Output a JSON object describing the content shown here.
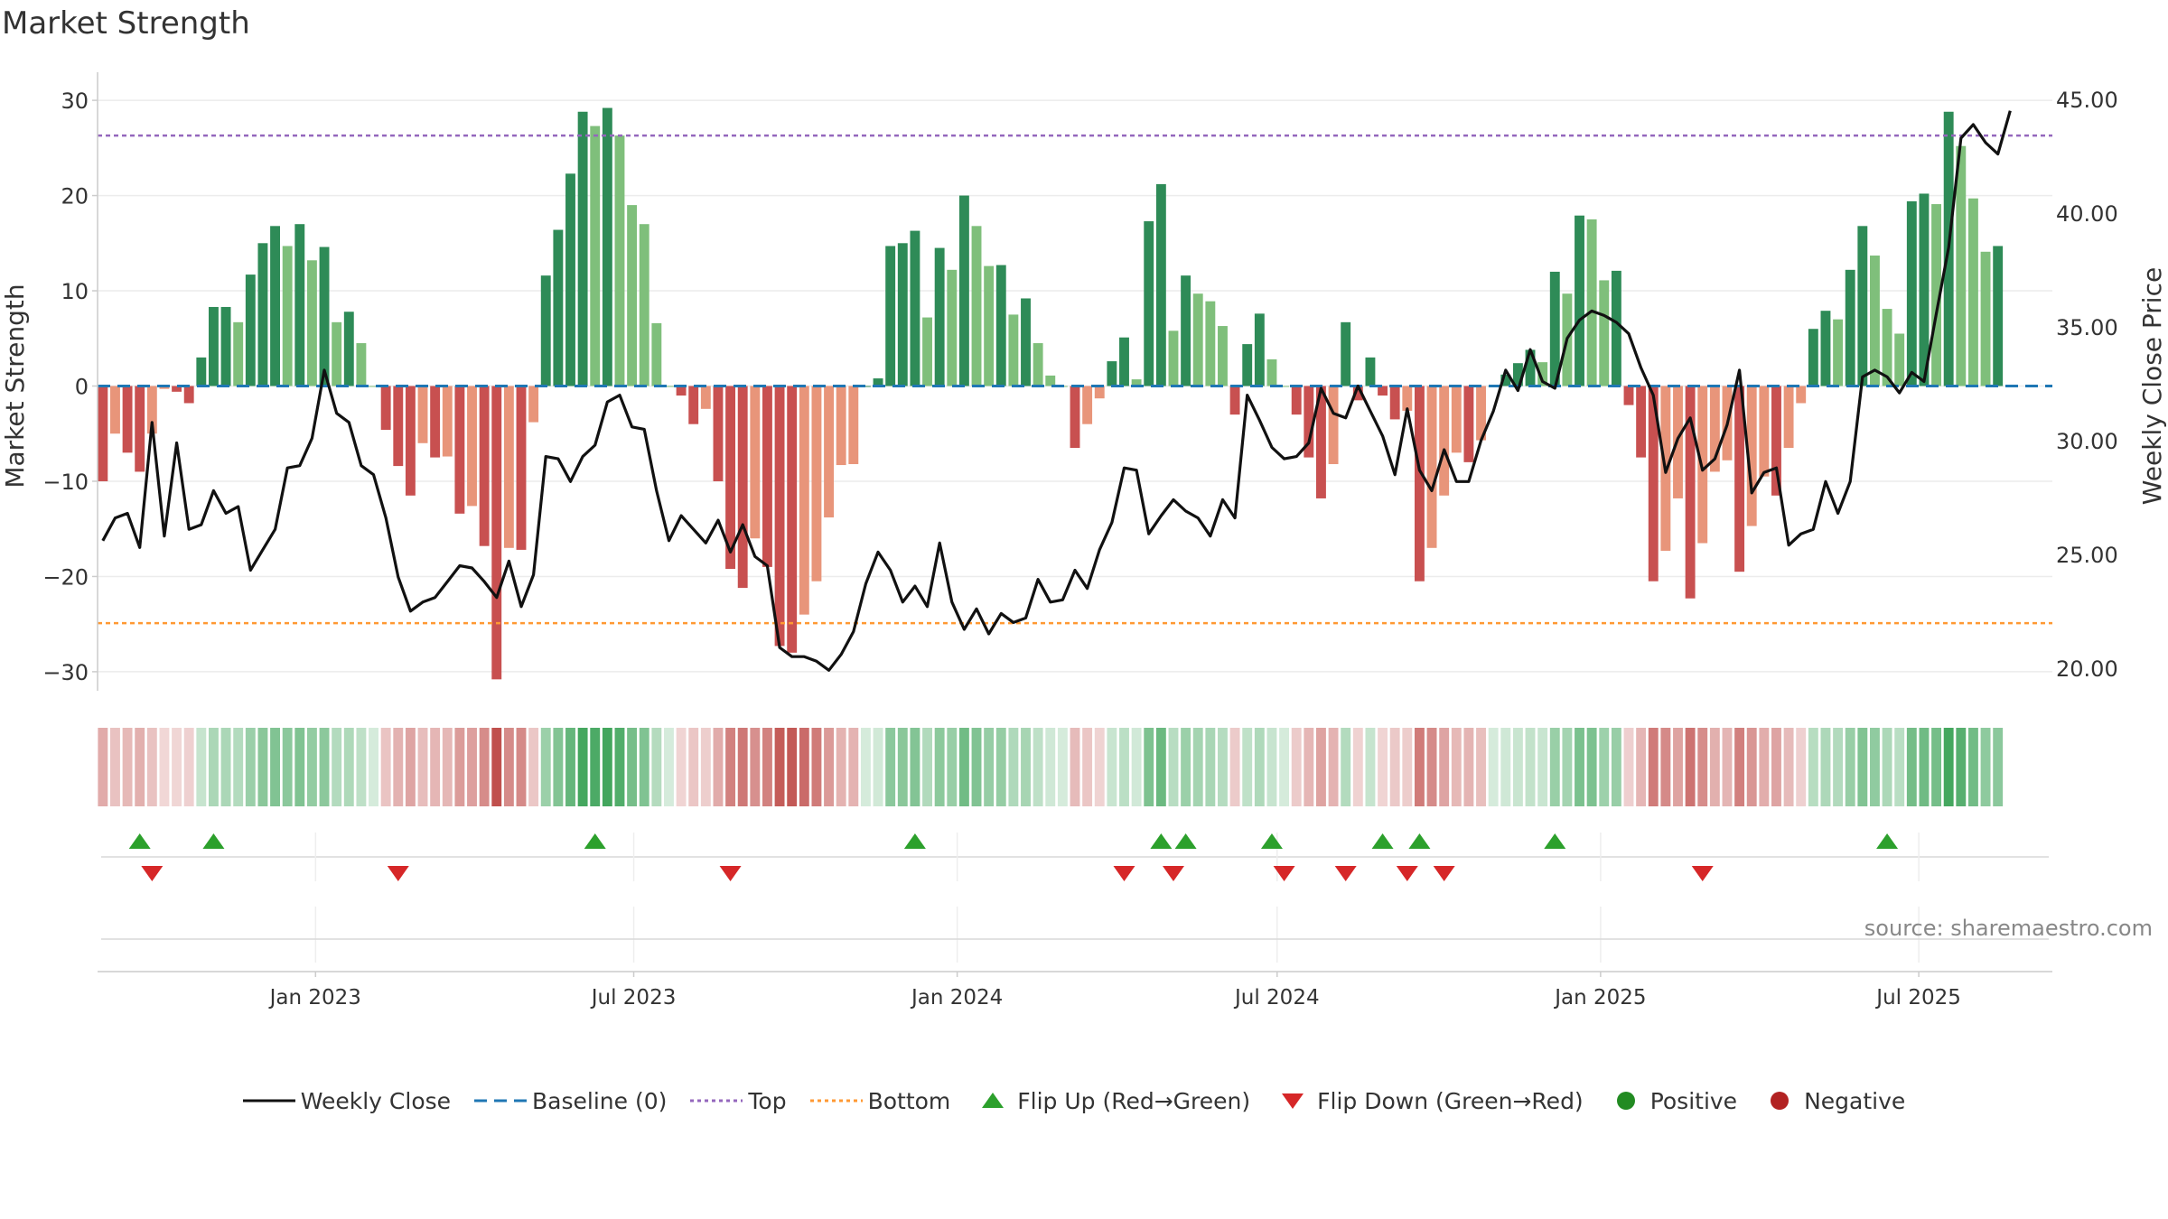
{
  "title": "Market Strength",
  "source": "source: sharemaestro.com",
  "legend": {
    "weekly_close": "Weekly Close",
    "baseline": "Baseline (0)",
    "top": "Top",
    "bottom": "Bottom",
    "flip_up": "Flip Up (Red→Green)",
    "flip_down": "Flip Down (Green→Red)",
    "positive": "Positive",
    "negative": "Negative"
  },
  "colors": {
    "strong_green": "#2e8b57",
    "light_green": "#7fbf7b",
    "strong_red": "#c85050",
    "light_red": "#e8957a",
    "top_line": "#9467bd",
    "bottom_line": "#ff9933",
    "baseline": "#1f77b4",
    "price": "#111111",
    "flip_up": "#2ca02c",
    "flip_down": "#d62728",
    "positive": "#228b22",
    "negative": "#b22222"
  },
  "chart_data": {
    "type": "bar",
    "x_dates": [
      "2022-09-02",
      "2022-09-09",
      "2022-09-16",
      "2022-09-23",
      "2022-09-30",
      "2022-10-07",
      "2022-10-14",
      "2022-10-21",
      "2022-10-28",
      "2022-11-04",
      "2022-11-11",
      "2022-11-18",
      "2022-11-25",
      "2022-12-02",
      "2022-12-09",
      "2022-12-16",
      "2022-12-23",
      "2022-12-30",
      "2023-01-06",
      "2023-01-13",
      "2023-01-20",
      "2023-01-27",
      "2023-02-03",
      "2023-02-10",
      "2023-02-17",
      "2023-02-24",
      "2023-03-03",
      "2023-03-10",
      "2023-03-17",
      "2023-03-24",
      "2023-03-31",
      "2023-04-07",
      "2023-04-14",
      "2023-04-21",
      "2023-04-28",
      "2023-05-05",
      "2023-05-12",
      "2023-05-19",
      "2023-05-26",
      "2023-06-02",
      "2023-06-09",
      "2023-06-16",
      "2023-06-23",
      "2023-06-30",
      "2023-07-07",
      "2023-07-14",
      "2023-07-21",
      "2023-07-28",
      "2023-08-04",
      "2023-08-11",
      "2023-08-18",
      "2023-08-25",
      "2023-09-01",
      "2023-09-08",
      "2023-09-15",
      "2023-09-22",
      "2023-09-29",
      "2023-10-06",
      "2023-10-13",
      "2023-10-20",
      "2023-10-27",
      "2023-11-03",
      "2023-11-10",
      "2023-11-17",
      "2023-11-24",
      "2023-12-01",
      "2023-12-08",
      "2023-12-15",
      "2023-12-22",
      "2023-12-29",
      "2024-01-05",
      "2024-01-12",
      "2024-01-19",
      "2024-01-26",
      "2024-02-02",
      "2024-02-09",
      "2024-02-16",
      "2024-02-23",
      "2024-03-01",
      "2024-03-08",
      "2024-03-15",
      "2024-03-22",
      "2024-03-29",
      "2024-04-05",
      "2024-04-12",
      "2024-04-19",
      "2024-04-26",
      "2024-05-03",
      "2024-05-10",
      "2024-05-17",
      "2024-05-24",
      "2024-05-31",
      "2024-06-07",
      "2024-06-14",
      "2024-06-21",
      "2024-06-28",
      "2024-07-05",
      "2024-07-12",
      "2024-07-19",
      "2024-07-26",
      "2024-08-02",
      "2024-08-09",
      "2024-08-16",
      "2024-08-23",
      "2024-08-30",
      "2024-09-06",
      "2024-09-13",
      "2024-09-20",
      "2024-09-27",
      "2024-10-04",
      "2024-10-11",
      "2024-10-18",
      "2024-10-25",
      "2024-11-01",
      "2024-11-08",
      "2024-11-15",
      "2024-11-22",
      "2024-11-29",
      "2024-12-06",
      "2024-12-13",
      "2024-12-20",
      "2024-12-27",
      "2025-01-03",
      "2025-01-10",
      "2025-01-17",
      "2025-01-24",
      "2025-01-31",
      "2025-02-07",
      "2025-02-14",
      "2025-02-21",
      "2025-02-28",
      "2025-03-07",
      "2025-03-14",
      "2025-03-21",
      "2025-03-28",
      "2025-04-04",
      "2025-04-11",
      "2025-04-18",
      "2025-04-25",
      "2025-05-02",
      "2025-05-09",
      "2025-05-16",
      "2025-05-23",
      "2025-05-30",
      "2025-06-06",
      "2025-06-13",
      "2025-06-20",
      "2025-06-27",
      "2025-07-04",
      "2025-07-11",
      "2025-07-18",
      "2025-07-25",
      "2025-08-01",
      "2025-08-08",
      "2025-08-15",
      "2025-08-22",
      "2025-08-29",
      "2025-09-05",
      "2025-09-12"
    ],
    "strength": [
      -10,
      -5,
      -7,
      -9,
      -5,
      -0.3,
      -0.6,
      -1.8,
      3,
      8.3,
      8.3,
      6.7,
      11.7,
      15,
      16.8,
      14.7,
      17,
      13.2,
      14.6,
      6.7,
      7.8,
      4.5,
      0,
      -4.6,
      -8.4,
      -11.5,
      -6,
      -7.5,
      -7.4,
      -13.4,
      -12.6,
      -16.8,
      -30.8,
      -17,
      -17.2,
      -3.8,
      11.6,
      16.4,
      22.3,
      28.8,
      27.3,
      29.2,
      26.3,
      19,
      17,
      6.6,
      0,
      -1,
      -4,
      -2.4,
      -10,
      -19.2,
      -21.2,
      -16,
      -19,
      -27.3,
      -28,
      -24,
      -20.5,
      -13.8,
      -8.3,
      -8.2,
      0,
      0.8,
      14.7,
      15,
      16.3,
      7.2,
      14.5,
      12.2,
      20,
      16.8,
      12.6,
      12.7,
      7.5,
      9.2,
      4.5,
      1.1,
      0,
      -6.5,
      -4,
      -1.3,
      2.6,
      5.1,
      0.7,
      17.3,
      21.2,
      5.8,
      11.6,
      9.7,
      8.9,
      6.3,
      -3,
      4.4,
      7.6,
      2.8,
      0,
      -3,
      -7.5,
      -11.8,
      -8.2,
      6.7,
      -1.5,
      3,
      -1,
      -3.5,
      -2.6,
      -20.5,
      -17,
      -11.5,
      -7,
      -8,
      -5.7,
      0,
      1.2,
      2.4,
      3.8,
      2.5,
      12,
      9.7,
      17.9,
      17.5,
      11.1,
      12.1,
      -2,
      -7.5,
      -20.5,
      -17.3,
      -11.8,
      -22.3,
      -16.5,
      -9,
      -7.8,
      -19.5,
      -14.7,
      -9.5,
      -11.5,
      -6.5,
      -1.8,
      6,
      7.9,
      7,
      12.2,
      16.8,
      13.7,
      8.1,
      5.5,
      19.4,
      20.2,
      19.1,
      28.8,
      25.2,
      19.7,
      14.1,
      14.7
    ],
    "weekly_close": [
      25.6,
      26.6,
      26.8,
      25.3,
      30.8,
      25.8,
      29.9,
      26.1,
      26.3,
      27.8,
      26.8,
      27.1,
      24.3,
      25.2,
      26.1,
      28.8,
      28.9,
      30.1,
      33.1,
      31.2,
      30.8,
      28.9,
      28.5,
      26.6,
      24,
      22.5,
      22.9,
      23.1,
      23.8,
      24.5,
      24.4,
      23.8,
      23.1,
      24.7,
      22.7,
      24.1,
      29.3,
      29.2,
      28.2,
      29.3,
      29.8,
      31.7,
      32,
      30.6,
      30.5,
      27.8,
      25.6,
      26.7,
      26.1,
      25.5,
      26.5,
      25.1,
      26.3,
      24.9,
      24.5,
      20.9,
      20.5,
      20.5,
      20.3,
      19.9,
      20.6,
      21.6,
      23.7,
      25.1,
      24.3,
      22.9,
      23.6,
      22.7,
      25.5,
      22.9,
      21.7,
      22.6,
      21.5,
      22.4,
      22,
      22.2,
      23.9,
      22.9,
      23,
      24.3,
      23.5,
      25.2,
      26.4,
      28.8,
      28.7,
      25.9,
      26.7,
      27.4,
      26.9,
      26.6,
      25.8,
      27.4,
      26.6,
      32,
      30.9,
      29.7,
      29.2,
      29.3,
      29.9,
      32.3,
      31.2,
      31,
      32.4,
      31.3,
      30.2,
      28.5,
      31.4,
      28.7,
      27.8,
      29.6,
      28.2,
      28.2,
      30,
      31.3,
      33.1,
      32.2,
      34,
      32.6,
      32.3,
      34.5,
      35.3,
      35.7,
      35.5,
      35.2,
      34.7,
      33.2,
      32,
      28.6,
      30.1,
      31,
      28.7,
      29.2,
      30.7,
      33.1,
      27.7,
      28.6,
      28.8,
      25.4,
      25.9,
      26.1,
      28.2,
      26.8,
      28.2,
      32.8,
      33.1,
      32.8,
      32.1,
      33,
      32.6,
      35.6,
      38.5,
      43.3,
      43.9,
      43.1,
      42.6,
      44.5
    ],
    "flip_up_dates": [
      "2022-09-23",
      "2022-11-04",
      "2023-06-09",
      "2023-12-08",
      "2024-04-26",
      "2024-05-10",
      "2024-06-28",
      "2024-08-30",
      "2024-09-20",
      "2024-12-06",
      "2025-06-13"
    ],
    "flip_down_dates": [
      "2022-09-30",
      "2023-02-17",
      "2023-08-25",
      "2024-04-05",
      "2024-05-03",
      "2024-07-05",
      "2024-08-09",
      "2024-09-13",
      "2024-10-04",
      "2025-02-28"
    ],
    "y_left": {
      "label": "Market Strength",
      "min": -32,
      "max": 32,
      "ticks": [
        -30,
        -20,
        -10,
        0,
        10,
        20,
        30
      ]
    },
    "y_right": {
      "label": "Weekly Close Price",
      "min": 19,
      "max": 45.8,
      "ticks": [
        "20.00",
        "25.00",
        "30.00",
        "35.00",
        "40.00",
        "45.00"
      ]
    },
    "top_threshold": 26.3,
    "bottom_threshold": -24.9,
    "baseline": 0,
    "x_ticks": [
      {
        "date": "2023-01-01",
        "label": "Jan 2023"
      },
      {
        "date": "2023-07-01",
        "label": "Jul 2023"
      },
      {
        "date": "2024-01-01",
        "label": "Jan 2024"
      },
      {
        "date": "2024-07-01",
        "label": "Jul 2024"
      },
      {
        "date": "2025-01-01",
        "label": "Jan 2025"
      },
      {
        "date": "2025-07-01",
        "label": "Jul 2025"
      }
    ],
    "x_range": [
      "2022-08-30",
      "2025-09-15"
    ],
    "grid": true,
    "legend_position": "bottom"
  }
}
